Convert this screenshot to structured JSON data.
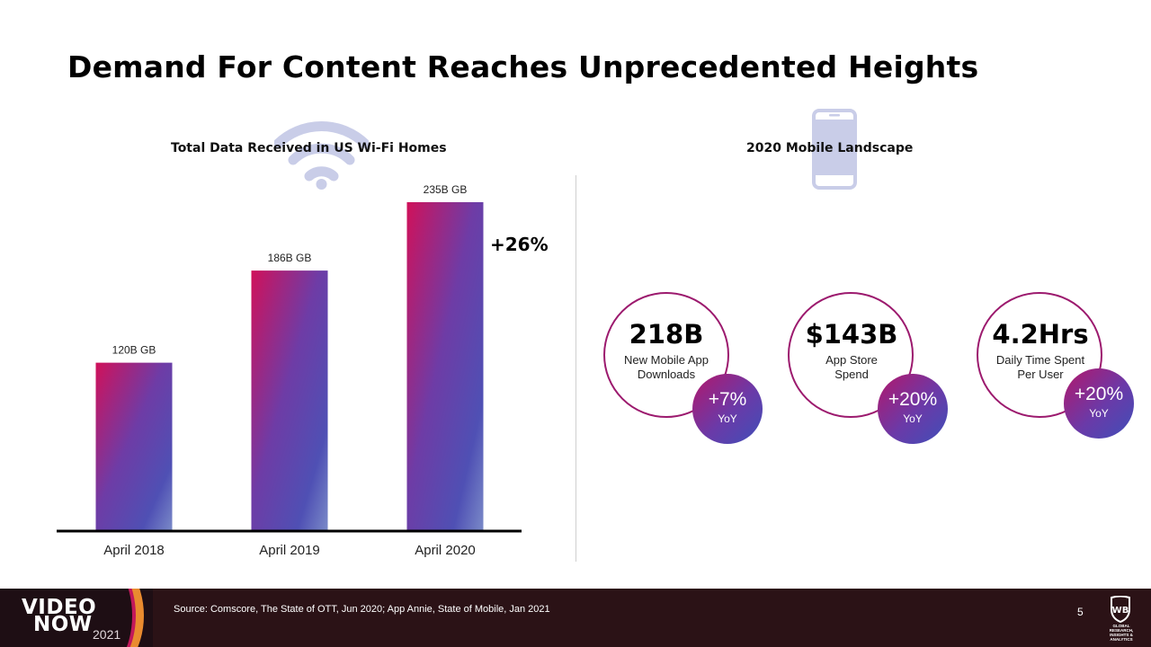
{
  "title": "Demand For Content Reaches Unprecedented Heights",
  "colors": {
    "bar_top": "#d0115a",
    "bar_mid": "#6e3ca6",
    "bar_bottom": "#7a8ac8",
    "ring": "#9c1a6e",
    "footer_bg": "#2b1216"
  },
  "chart_data": {
    "type": "bar",
    "title": "Total Data Received in US Wi-Fi Homes",
    "categories": [
      "April 2018",
      "April 2019",
      "April 2020"
    ],
    "values": [
      120,
      186,
      235
    ],
    "data_labels": [
      "120B GB",
      "186B GB",
      "235B GB"
    ],
    "xlabel": "",
    "ylabel": "",
    "ylim": [
      0,
      235
    ],
    "grid": false,
    "annotation": "+26%"
  },
  "mobile": {
    "title": "2020 Mobile Landscape",
    "stats": [
      {
        "value": "218B",
        "label_line1": "New Mobile App",
        "label_line2": "Downloads",
        "growth": "+7%",
        "growth_unit": "YoY"
      },
      {
        "value": "$143B",
        "label_line1": "App Store",
        "label_line2": "Spend",
        "growth": "+20%",
        "growth_unit": "YoY"
      },
      {
        "value": "4.2Hrs",
        "label_line1": "Daily Time Spent",
        "label_line2": "Per User",
        "growth": "+20%",
        "growth_unit": "YoY"
      }
    ]
  },
  "footer": {
    "logo_line1": "VIDEO",
    "logo_line2": "NOW",
    "logo_year": "2021",
    "source": "Source: Comscore, The State of OTT, Jun 2020; App Annie, State of Mobile, Jan 2021",
    "page_number": "5",
    "brand_caption_line1": "GLOBAL RESEARCH,",
    "brand_caption_line2": "INSIGHTS & ANALYTICS"
  },
  "icons": {
    "wifi": "wifi-icon",
    "phone": "mobile-phone-icon",
    "brand": "wb-shield-icon"
  }
}
